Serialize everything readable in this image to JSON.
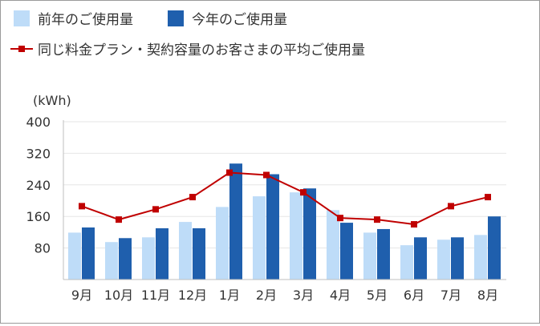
{
  "chart_data": {
    "type": "bar",
    "unit_label": "(kWh)",
    "categories": [
      "9月",
      "10月",
      "11月",
      "12月",
      "1月",
      "2月",
      "3月",
      "4月",
      "5月",
      "6月",
      "7月",
      "8月"
    ],
    "series": [
      {
        "name": "前年のご使用量",
        "type": "bar",
        "color": "#bedcf8",
        "values": [
          119,
          95,
          107,
          146,
          184,
          211,
          221,
          176,
          119,
          87,
          101,
          113
        ]
      },
      {
        "name": "今年のご使用量",
        "type": "bar",
        "color": "#1f5fad",
        "values": [
          132,
          105,
          130,
          130,
          294,
          267,
          231,
          144,
          128,
          107,
          107,
          160
        ]
      },
      {
        "name": "同じ料金プラン・契約容量のお客さまの平均ご使用量",
        "type": "line",
        "color": "#c00000",
        "values": [
          186,
          152,
          178,
          209,
          271,
          265,
          221,
          156,
          152,
          140,
          186,
          209
        ]
      }
    ],
    "yticks": [
      80,
      160,
      240,
      320,
      400
    ],
    "ylim": [
      0,
      400
    ],
    "grid": true,
    "legend_position": "top-left"
  }
}
